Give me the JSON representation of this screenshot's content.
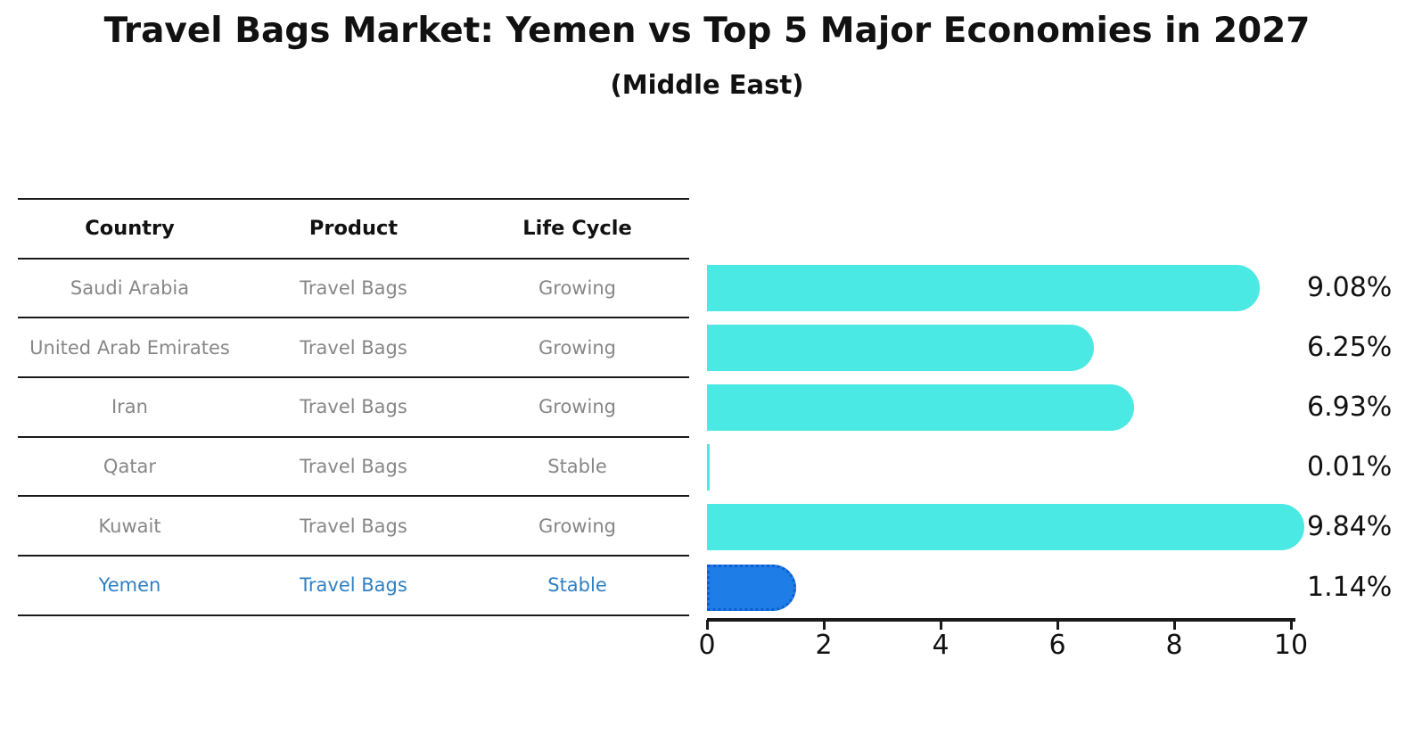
{
  "title": "Travel Bags Market: Yemen vs Top 5 Major Economies in 2027",
  "subtitle": "(Middle East)",
  "table": {
    "headers": [
      "Country",
      "Product",
      "Life Cycle"
    ],
    "rows": [
      {
        "country": "Saudi Arabia",
        "product": "Travel Bags",
        "life_cycle": "Growing",
        "highlight": false
      },
      {
        "country": "United Arab Emirates",
        "product": "Travel Bags",
        "life_cycle": "Growing",
        "highlight": false
      },
      {
        "country": "Iran",
        "product": "Travel Bags",
        "life_cycle": "Growing",
        "highlight": false
      },
      {
        "country": "Qatar",
        "product": "Travel Bags",
        "life_cycle": "Stable",
        "highlight": false
      },
      {
        "country": "Kuwait",
        "product": "Travel Bags",
        "life_cycle": "Growing",
        "highlight": false
      },
      {
        "country": "Yemen",
        "product": "Travel Bags",
        "life_cycle": "Stable",
        "highlight": true
      }
    ]
  },
  "chart_data": {
    "type": "bar",
    "orientation": "horizontal",
    "categories": [
      "Saudi Arabia",
      "United Arab Emirates",
      "Iran",
      "Qatar",
      "Kuwait",
      "Yemen"
    ],
    "values": [
      9.08,
      6.25,
      6.93,
      0.01,
      9.84,
      1.14
    ],
    "value_labels": [
      "9.08%",
      "6.25%",
      "6.93%",
      "0.01%",
      "9.84%",
      "1.14%"
    ],
    "x_ticks": [
      0,
      2,
      4,
      6,
      8,
      10
    ],
    "xlim": [
      0,
      10
    ],
    "xlabel": "",
    "ylabel": "",
    "grid": false,
    "legend": false,
    "bar_color": "#4be9e3",
    "highlight_index": 5,
    "highlight_color": "#1e7de6",
    "highlight_border_color": "#0d5fd0"
  },
  "colors": {
    "accent_cyan": "#4be9e3",
    "highlight_blue": "#1e7de6",
    "highlight_text": "#2e80c4",
    "table_text": "#878787",
    "heading_text": "#111111"
  }
}
